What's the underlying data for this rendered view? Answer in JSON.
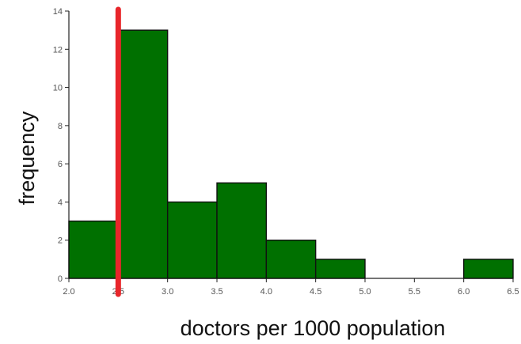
{
  "chart_data": {
    "type": "bar",
    "xlabel": "doctors per 1000 population",
    "ylabel": "frequency",
    "bins": [
      {
        "start": 2.0,
        "end": 2.5,
        "value": 3
      },
      {
        "start": 2.5,
        "end": 3.0,
        "value": 13
      },
      {
        "start": 3.0,
        "end": 3.5,
        "value": 4
      },
      {
        "start": 3.5,
        "end": 4.0,
        "value": 5
      },
      {
        "start": 4.0,
        "end": 4.5,
        "value": 2
      },
      {
        "start": 4.5,
        "end": 5.0,
        "value": 1
      },
      {
        "start": 5.0,
        "end": 5.5,
        "value": 0
      },
      {
        "start": 5.5,
        "end": 6.0,
        "value": 0
      },
      {
        "start": 6.0,
        "end": 6.5,
        "value": 1
      }
    ],
    "xticks": [
      "2.0",
      "2.5",
      "3.0",
      "3.5",
      "4.0",
      "4.5",
      "5.0",
      "5.5",
      "6.0",
      "6.5"
    ],
    "yticks": [
      "0",
      "2",
      "4",
      "6",
      "8",
      "10",
      "12",
      "14"
    ],
    "xlim": [
      2.0,
      6.5
    ],
    "ylim": [
      0,
      14
    ],
    "reference_line": {
      "x": 2.5,
      "color": "#e8262b"
    },
    "bar_color": "#007000",
    "grid": false,
    "legend": "none"
  }
}
